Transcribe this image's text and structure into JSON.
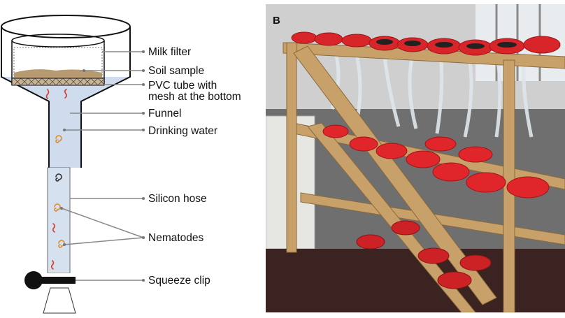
{
  "panel_a": {
    "labels": {
      "milk_filter": "Milk filter",
      "soil_sample": "Soil sample",
      "pvc_tube_line1": "PVC tube with",
      "pvc_tube_line2": "mesh at the bottom",
      "funnel": "Funnel",
      "drinking_water": "Drinking water",
      "silicon_hose": "Silicon hose",
      "nematodes": "Nematodes",
      "squeeze_clip": "Squeeze clip"
    }
  },
  "panel_b": {
    "letter": "B"
  },
  "colors": {
    "water": "#cfdcee",
    "soil": "#b89a72",
    "nematode_orange": "#e08a2a",
    "nematode_red": "#d63a2a",
    "nematode_dark": "#333333",
    "leader_line": "#888888",
    "funnel_red": "#d8252a",
    "wood": "#c8a16a"
  }
}
